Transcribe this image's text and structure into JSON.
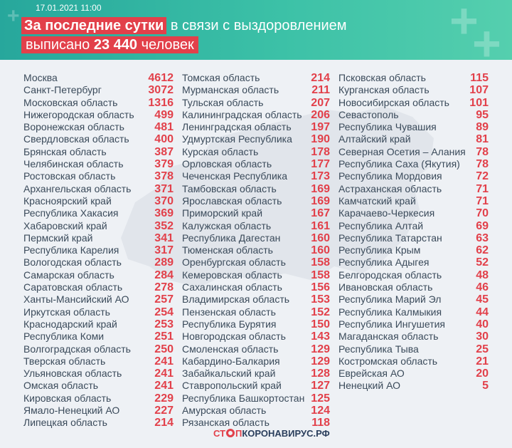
{
  "header": {
    "date": "17.01.2021 11:00",
    "line1_highlight": "За последние сутки",
    "line1_rest": "в связи с выздоровлением",
    "line2_prefix": "выписано",
    "line2_number": "23 440",
    "line2_suffix": "человек"
  },
  "columns": [
    [
      {
        "region": "Москва",
        "count": "4612"
      },
      {
        "region": "Санкт-Петербург",
        "count": "3072"
      },
      {
        "region": "Московская область",
        "count": "1316"
      },
      {
        "region": "Нижегородская область",
        "count": "499"
      },
      {
        "region": "Воронежская область",
        "count": "481"
      },
      {
        "region": "Свердловская область",
        "count": "400"
      },
      {
        "region": "Брянская область",
        "count": "387"
      },
      {
        "region": "Челябинская область",
        "count": "379"
      },
      {
        "region": "Ростовская область",
        "count": "378"
      },
      {
        "region": "Архангельская область",
        "count": "371"
      },
      {
        "region": "Красноярский край",
        "count": "370"
      },
      {
        "region": "Республика Хакасия",
        "count": "369"
      },
      {
        "region": "Хабаровский край",
        "count": "352"
      },
      {
        "region": "Пермский край",
        "count": "341"
      },
      {
        "region": "Республика Карелия",
        "count": "317"
      },
      {
        "region": "Вологодская область",
        "count": "289"
      },
      {
        "region": "Самарская область",
        "count": "284"
      },
      {
        "region": "Саратовская область",
        "count": "278"
      },
      {
        "region": "Ханты-Мансийский АО",
        "count": "257"
      },
      {
        "region": "Иркутская область",
        "count": "254"
      },
      {
        "region": "Краснодарский край",
        "count": "253"
      },
      {
        "region": "Республика Коми",
        "count": "251"
      },
      {
        "region": "Волгоградская область",
        "count": "250"
      },
      {
        "region": "Тверская область",
        "count": "241"
      },
      {
        "region": "Ульяновская область",
        "count": "241"
      },
      {
        "region": "Омская область",
        "count": "241"
      },
      {
        "region": "Кировская область",
        "count": "229"
      },
      {
        "region": "Ямало-Ненецкий АО",
        "count": "227"
      },
      {
        "region": "Липецкая область",
        "count": "214"
      }
    ],
    [
      {
        "region": "Томская область",
        "count": "214"
      },
      {
        "region": "Мурманская область",
        "count": "211"
      },
      {
        "region": "Тульская область",
        "count": "207"
      },
      {
        "region": "Калининградская область",
        "count": "206"
      },
      {
        "region": "Ленинградская область",
        "count": "197"
      },
      {
        "region": "Удмуртская Республика",
        "count": "190"
      },
      {
        "region": "Курская область",
        "count": "178"
      },
      {
        "region": "Орловская область",
        "count": "177"
      },
      {
        "region": "Чеченская Республика",
        "count": "173"
      },
      {
        "region": "Тамбовская область",
        "count": "169"
      },
      {
        "region": "Ярославская область",
        "count": "169"
      },
      {
        "region": "Приморский край",
        "count": "167"
      },
      {
        "region": "Калужская область",
        "count": "161"
      },
      {
        "region": "Республика Дагестан",
        "count": "160"
      },
      {
        "region": "Тюменская область",
        "count": "160"
      },
      {
        "region": "Оренбургская область",
        "count": "158"
      },
      {
        "region": "Кемеровская область",
        "count": "158"
      },
      {
        "region": "Сахалинская область",
        "count": "156"
      },
      {
        "region": "Владимирская область",
        "count": "153"
      },
      {
        "region": "Пензенская область",
        "count": "152"
      },
      {
        "region": "Республика Бурятия",
        "count": "150"
      },
      {
        "region": "Новгородская область",
        "count": "143"
      },
      {
        "region": "Смоленская область",
        "count": "129"
      },
      {
        "region": "Кабардино-Балкария",
        "count": "129"
      },
      {
        "region": "Забайкальский край",
        "count": "128"
      },
      {
        "region": "Ставропольский край",
        "count": "127"
      },
      {
        "region": "Республика Башкортостан",
        "count": "125"
      },
      {
        "region": "Амурская область",
        "count": "124"
      },
      {
        "region": "Рязанская область",
        "count": "118"
      }
    ],
    [
      {
        "region": "Псковская область",
        "count": "115"
      },
      {
        "region": "Курганская область",
        "count": "107"
      },
      {
        "region": "Новосибирская область",
        "count": "101"
      },
      {
        "region": "Севастополь",
        "count": "95"
      },
      {
        "region": "Республика Чувашия",
        "count": "89"
      },
      {
        "region": "Алтайский край",
        "count": "81"
      },
      {
        "region": "Северная Осетия – Алания",
        "count": "78"
      },
      {
        "region": "Республика Саха (Якутия)",
        "count": "78"
      },
      {
        "region": "Республика Мордовия",
        "count": "72"
      },
      {
        "region": "Астраханская область",
        "count": "71"
      },
      {
        "region": "Камчатский край",
        "count": "71"
      },
      {
        "region": "Карачаево-Черкесия",
        "count": "70"
      },
      {
        "region": "Республика Алтай",
        "count": "69"
      },
      {
        "region": "Республика Татарстан",
        "count": "63"
      },
      {
        "region": "Республика Крым",
        "count": "62"
      },
      {
        "region": "Республика Адыгея",
        "count": "52"
      },
      {
        "region": "Белгородская область",
        "count": "48"
      },
      {
        "region": "Ивановская область",
        "count": "46"
      },
      {
        "region": "Республика Марий Эл",
        "count": "45"
      },
      {
        "region": "Республика Калмыкия",
        "count": "44"
      },
      {
        "region": "Республика Ингушетия",
        "count": "40"
      },
      {
        "region": "Магаданская область",
        "count": "30"
      },
      {
        "region": "Республика Тыва",
        "count": "25"
      },
      {
        "region": "Костромская область",
        "count": "21"
      },
      {
        "region": "Еврейская АО",
        "count": "20"
      },
      {
        "region": "Ненецкий АО",
        "count": "5"
      }
    ]
  ],
  "footer": {
    "logo_stop": "СТ",
    "logo_p": "П",
    "logo_rest": "КОРОНАВИРУС.РФ"
  },
  "colors": {
    "header_teal": "#27a79c",
    "accent_red": "#e2404a",
    "text_dark": "#3a4a5a",
    "background": "#eef1f5"
  }
}
